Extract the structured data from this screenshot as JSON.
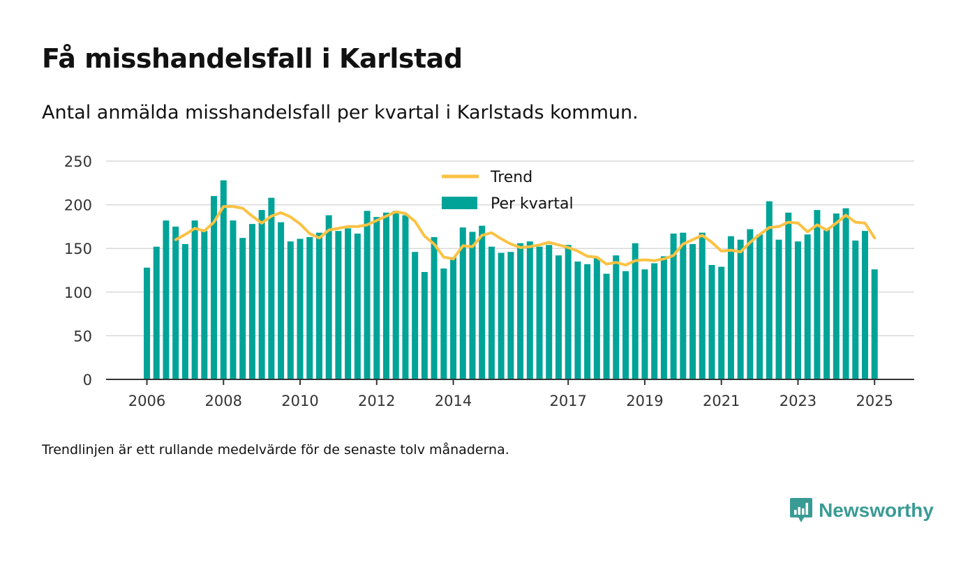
{
  "title": "Få misshandelsfall i Karlstad",
  "subtitle": "Antal anmälda misshandelsfall per kvartal i Karlstads kommun.",
  "note": "Trendlinjen är ett rullande medelvärde för de senaste tolv månaderna.",
  "brand": {
    "name": "Newsworthy",
    "icon": "newsworthy-logo-icon",
    "color": "#3a9b94"
  },
  "chart_data": {
    "type": "bar",
    "grid": true,
    "legend_position": "top-center",
    "ylim": [
      0,
      250
    ],
    "yticks": [
      0,
      50,
      100,
      150,
      200,
      250
    ],
    "xticks": [
      {
        "label": "2006",
        "index": 0
      },
      {
        "label": "2008",
        "index": 8
      },
      {
        "label": "2010",
        "index": 16
      },
      {
        "label": "2012",
        "index": 24
      },
      {
        "label": "2014",
        "index": 32
      },
      {
        "label": "2017",
        "index": 44
      },
      {
        "label": "2019",
        "index": 52
      },
      {
        "label": "2021",
        "index": 60
      },
      {
        "label": "2023",
        "index": 68
      },
      {
        "label": "2025",
        "index": 76
      }
    ],
    "colors": {
      "bars": "#00a398",
      "trend": "#fbc243",
      "grid": "#d9d9d9",
      "axis": "#333333"
    },
    "series": [
      {
        "name": "Per kvartal",
        "type": "bar",
        "values": [
          128,
          152,
          182,
          175,
          155,
          182,
          170,
          210,
          228,
          182,
          162,
          178,
          194,
          208,
          180,
          158,
          161,
          163,
          168,
          188,
          170,
          173,
          167,
          193,
          186,
          191,
          193,
          188,
          146,
          123,
          163,
          127,
          140,
          174,
          169,
          176,
          152,
          145,
          146,
          156,
          158,
          152,
          154,
          142,
          154,
          135,
          132,
          139,
          121,
          142,
          124,
          156,
          126,
          133,
          141,
          167,
          168,
          155,
          168,
          131,
          129,
          164,
          160,
          172,
          166,
          204,
          160,
          191,
          158,
          166,
          194,
          172,
          190,
          196,
          159,
          170,
          126
        ]
      },
      {
        "name": "Trend",
        "type": "line",
        "start_index": 3,
        "values": [
          160,
          166,
          173,
          170,
          180,
          198,
          198,
          196,
          187,
          179,
          187,
          191,
          186,
          178,
          167,
          162,
          171,
          173,
          175,
          175,
          177,
          182,
          187,
          192,
          190,
          181,
          164,
          155,
          140,
          138,
          153,
          152,
          165,
          168,
          161,
          155,
          151,
          152,
          154,
          157,
          154,
          151,
          147,
          141,
          140,
          132,
          134,
          131,
          136,
          137,
          136,
          138,
          142,
          155,
          160,
          165,
          157,
          147,
          148,
          146,
          157,
          166,
          174,
          175,
          180,
          179,
          169,
          177,
          171,
          179,
          188,
          180,
          179,
          162
        ]
      }
    ]
  }
}
